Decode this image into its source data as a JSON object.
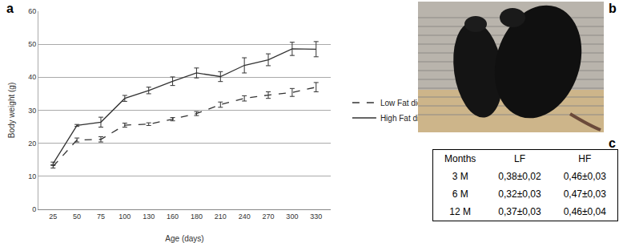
{
  "chart_data": {
    "type": "line",
    "panel_label": "a",
    "x_label": "Age (days)",
    "y_label": "Body weight (g)",
    "categories": [
      "25",
      "50",
      "75",
      "100",
      "130",
      "160",
      "180",
      "210",
      "240",
      "270",
      "300",
      "330"
    ],
    "series": [
      {
        "name": "Low Fat diet",
        "color": "#333333",
        "line_style": "dash",
        "values": [
          13,
          21,
          21.2,
          25.5,
          25.8,
          27.3,
          29,
          31.7,
          33.6,
          34.6,
          35.4,
          37
        ],
        "error": [
          0.5,
          0.6,
          0.8,
          0.6,
          0.4,
          0.5,
          0.6,
          0.8,
          0.8,
          1.0,
          1.2,
          1.4
        ]
      },
      {
        "name": "High Fat diet",
        "color": "#333333",
        "line_style": "solid",
        "values": [
          13.8,
          25.4,
          26.4,
          33.6,
          36,
          38.8,
          41.3,
          40.2,
          43.6,
          45.3,
          48.6,
          48.5
        ],
        "error": [
          0.5,
          0.3,
          1.5,
          0.9,
          1.0,
          1.3,
          1.5,
          1.5,
          2.3,
          1.8,
          2.0,
          2.3
        ]
      }
    ],
    "ylim": [
      0,
      60
    ],
    "yticks": [
      0,
      10,
      20,
      30,
      40,
      50,
      60
    ],
    "grid": true,
    "legend": "right"
  },
  "photo": {
    "panel_label": "b"
  },
  "table": {
    "panel_label": "c",
    "header": [
      "Months",
      "LF",
      "HF"
    ],
    "rows": [
      [
        "3 M",
        "0,38±0,02",
        "0,46±0,03"
      ],
      [
        "6 M",
        "0,32±0,03",
        "0,47±0,03"
      ],
      [
        "12 M",
        "0,37±0,03",
        "0,46±0,04"
      ]
    ]
  }
}
